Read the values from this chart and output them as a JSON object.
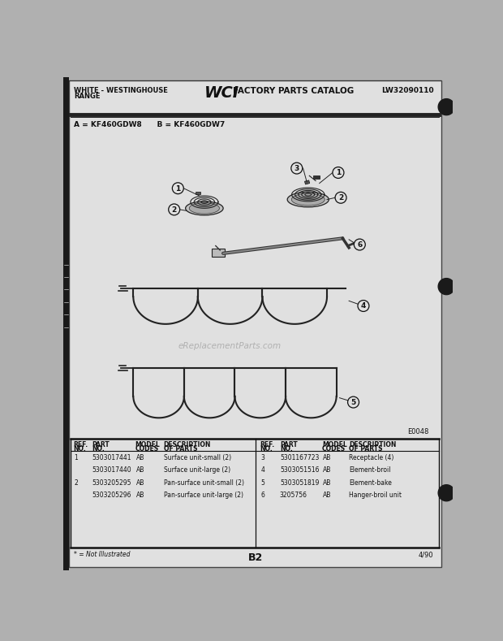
{
  "title_left1": "WHITE - WESTINGHOUSE",
  "title_left2": "RANGE",
  "title_center": "WCI FACTORY PARTS CATALOG",
  "title_right": "LW32090110",
  "model_line": "A = KF460GDW8      B = KF460GDW7",
  "diagram_code": "E0048",
  "page": "B2",
  "date": "4/90",
  "footnote": "* = Not Illustrated",
  "bg_color": "#b0b0b0",
  "paper_color": "#e0e0e0",
  "left_parts": [
    [
      "1",
      "5303017441",
      "AB",
      "Surface unit-small (2)"
    ],
    [
      "",
      "5303017440",
      "AB",
      "Surface unit-large (2)"
    ],
    [
      "2",
      "5303205295",
      "AB",
      "Pan-surface unit-small (2)"
    ],
    [
      "",
      "5303205296",
      "AB",
      "Pan-surface unit-large (2)"
    ]
  ],
  "right_parts": [
    [
      "3",
      "5301167723",
      "AB",
      "Receptacle (4)"
    ],
    [
      "4",
      "5303051516",
      "AB",
      "Element-broil"
    ],
    [
      "5",
      "5303051819",
      "AB",
      "Element-bake"
    ],
    [
      "6",
      "3205756",
      "AB",
      "Hanger-broil unit"
    ]
  ]
}
